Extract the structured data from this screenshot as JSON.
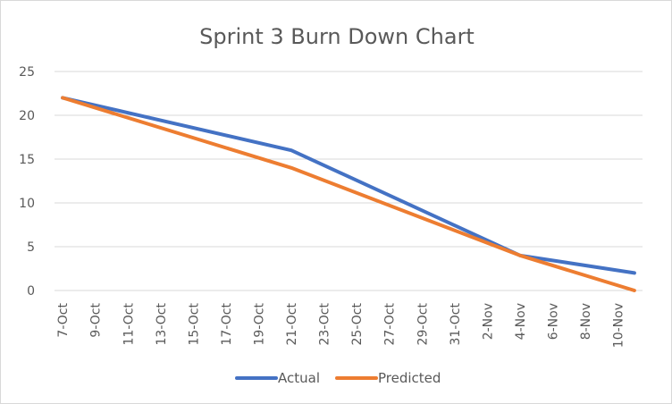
{
  "chart_data": {
    "type": "line",
    "title": "Sprint 3 Burn Down Chart",
    "xlabel": "",
    "ylabel": "",
    "ylim": [
      0,
      25
    ],
    "yticks": [
      "0",
      "5",
      "10",
      "15",
      "20",
      "25"
    ],
    "x_dates": [
      "7-Oct",
      "8-Oct",
      "9-Oct",
      "10-Oct",
      "11-Oct",
      "12-Oct",
      "13-Oct",
      "14-Oct",
      "15-Oct",
      "16-Oct",
      "17-Oct",
      "18-Oct",
      "19-Oct",
      "20-Oct",
      "21-Oct",
      "22-Oct",
      "23-Oct",
      "24-Oct",
      "25-Oct",
      "26-Oct",
      "27-Oct",
      "28-Oct",
      "29-Oct",
      "30-Oct",
      "31-Oct",
      "1-Nov",
      "2-Nov",
      "3-Nov",
      "4-Nov",
      "5-Nov",
      "6-Nov",
      "7-Nov",
      "8-Nov",
      "9-Nov",
      "10-Nov",
      "11-Nov"
    ],
    "x_tick_labels": [
      "7-Oct",
      "9-Oct",
      "11-Oct",
      "13-Oct",
      "15-Oct",
      "17-Oct",
      "19-Oct",
      "21-Oct",
      "23-Oct",
      "25-Oct",
      "27-Oct",
      "29-Oct",
      "31-Oct",
      "2-Nov",
      "4-Nov",
      "6-Nov",
      "8-Nov",
      "10-Nov"
    ],
    "grid": true,
    "legend_position": "bottom",
    "series": [
      {
        "name": "Actual",
        "color": "#4472C4",
        "points": [
          {
            "x": "7-Oct",
            "y": 22
          },
          {
            "x": "21-Oct",
            "y": 16
          },
          {
            "x": "4-Nov",
            "y": 4
          },
          {
            "x": "11-Nov",
            "y": 2
          }
        ]
      },
      {
        "name": "Predicted",
        "color": "#ED7D31",
        "points": [
          {
            "x": "7-Oct",
            "y": 22
          },
          {
            "x": "21-Oct",
            "y": 14
          },
          {
            "x": "4-Nov",
            "y": 4
          },
          {
            "x": "11-Nov",
            "y": 0
          }
        ]
      }
    ]
  }
}
